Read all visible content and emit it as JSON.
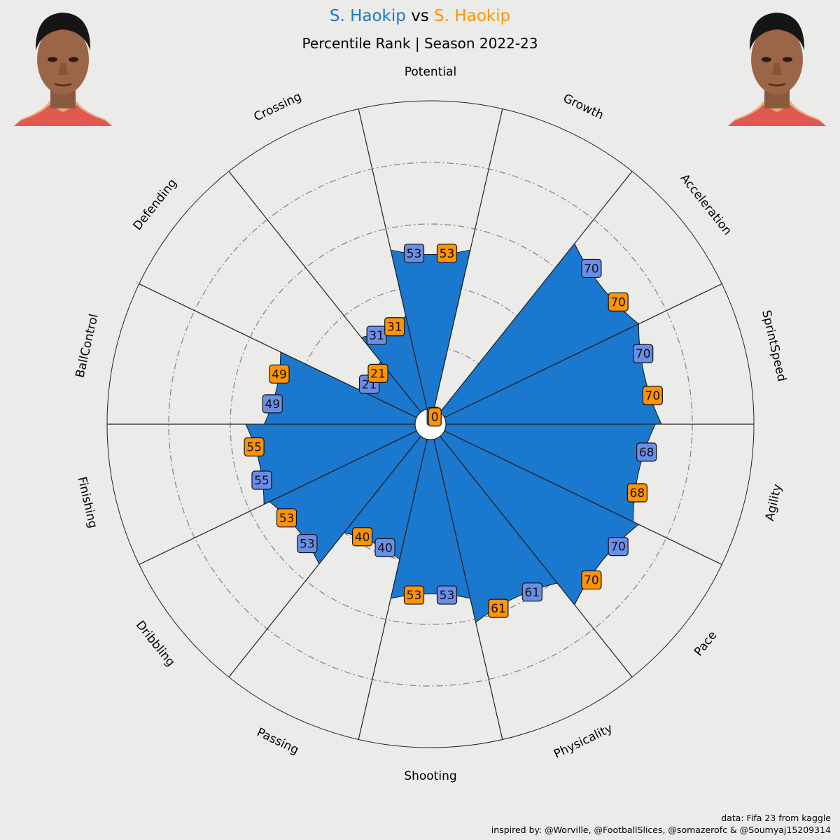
{
  "header": {
    "player1": "S. Haokip",
    "vs": "vs",
    "player2": "S. Haokip",
    "subtitle": "Percentile Rank | Season 2022-23"
  },
  "colors": {
    "player1": "#1a78cf",
    "player2": "#ff9300",
    "label_box_player1": "#6a8ee8",
    "label_box_player2": "#ff9300",
    "background": "#ebebe9",
    "slice_fill": "#1a78cf"
  },
  "chart_data": {
    "type": "radar",
    "title": "S. Haokip vs S. Haokip",
    "subtitle": "Percentile Rank | Season 2022-23",
    "categories": [
      "Potential",
      "Growth",
      "Acceleration",
      "SprintSpeed",
      "Agility",
      "Pace",
      "Physicality",
      "Shooting",
      "Passing",
      "Dribbling",
      "Finishing",
      "BallControl",
      "Defending",
      "Crossing"
    ],
    "series": [
      {
        "name": "S. Haokip",
        "values": [
          53,
          0,
          70,
          70,
          68,
          70,
          61,
          53,
          40,
          53,
          55,
          49,
          21,
          31
        ]
      },
      {
        "name": "S. Haokip",
        "values": [
          53,
          0,
          70,
          70,
          68,
          70,
          61,
          53,
          40,
          53,
          55,
          49,
          21,
          31
        ]
      }
    ],
    "range": [
      0,
      100
    ],
    "grid": "dash-dot rings at 20, 40, 60, 80"
  },
  "footer": {
    "source": "data: Fifa 23 from kaggle",
    "inspired": "inspired by: @Worville, @FootballSlices, @somazerofc & @Soumyaj15209314"
  },
  "photos": {
    "left": "player-photo",
    "right": "player-photo"
  }
}
